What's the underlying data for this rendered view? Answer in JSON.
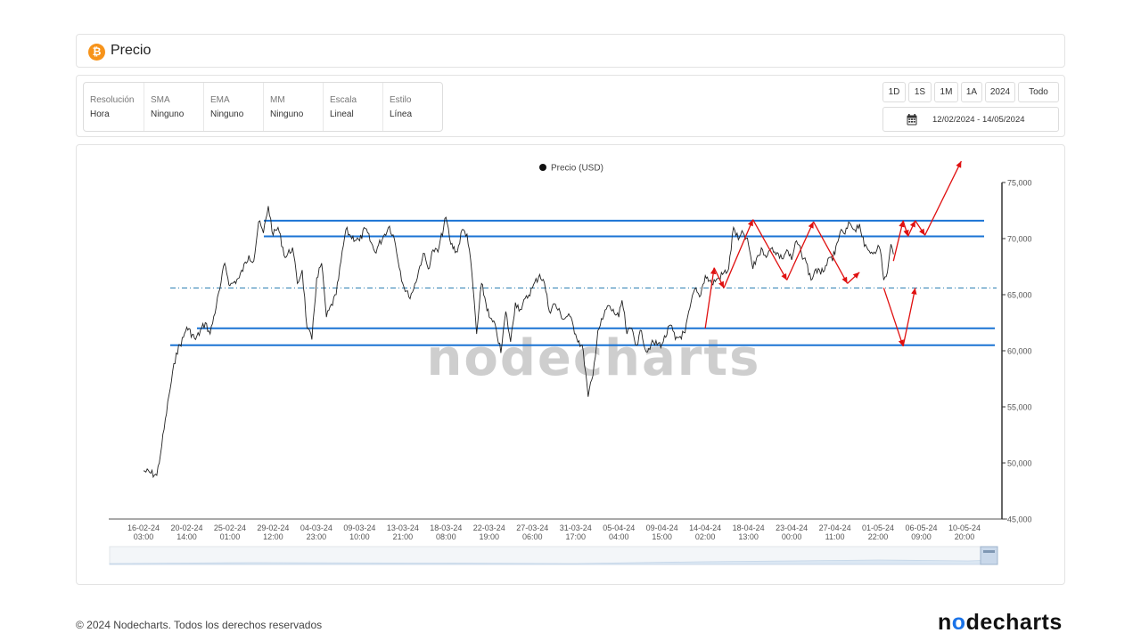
{
  "header": {
    "title": "Precio",
    "logo_icon": "bitcoin-icon",
    "logo_glyph": "₿"
  },
  "settings": [
    {
      "label": "Resolución",
      "value": "Hora"
    },
    {
      "label": "SMA",
      "value": "Ninguno"
    },
    {
      "label": "EMA",
      "value": "Ninguno"
    },
    {
      "label": "MM",
      "value": "Ninguno"
    },
    {
      "label": "Escala",
      "value": "Lineal"
    },
    {
      "label": "Estilo",
      "value": "Línea"
    }
  ],
  "ranges": [
    "1D",
    "1S",
    "1M",
    "1A",
    "2024",
    "Todo"
  ],
  "date_range": {
    "icon": "calendar-icon",
    "text": "12/02/2024 - 14/05/2024"
  },
  "watermark": "nodecharts",
  "footer": {
    "copyright": "© 2024 Nodecharts. Todos los derechos reservados",
    "logo": "nodecharts"
  },
  "chart_data": {
    "type": "line",
    "legend": [
      "Precio (USD)"
    ],
    "legend_placement": "top-center",
    "ylim": [
      45000,
      75000
    ],
    "y_ticks": [
      "45,000",
      "50,000",
      "55,000",
      "60,000",
      "65,000",
      "70,000",
      "75,000"
    ],
    "y_tick_values": [
      45000,
      50000,
      55000,
      60000,
      65000,
      70000,
      75000
    ],
    "x_ticks": [
      [
        "16-02-24",
        "03:00"
      ],
      [
        "20-02-24",
        "14:00"
      ],
      [
        "25-02-24",
        "01:00"
      ],
      [
        "29-02-24",
        "12:00"
      ],
      [
        "04-03-24",
        "23:00"
      ],
      [
        "09-03-24",
        "10:00"
      ],
      [
        "13-03-24",
        "21:00"
      ],
      [
        "18-03-24",
        "08:00"
      ],
      [
        "22-03-24",
        "19:00"
      ],
      [
        "27-03-24",
        "06:00"
      ],
      [
        "31-03-24",
        "17:00"
      ],
      [
        "05-04-24",
        "04:00"
      ],
      [
        "09-04-24",
        "15:00"
      ],
      [
        "14-04-24",
        "02:00"
      ],
      [
        "18-04-24",
        "13:00"
      ],
      [
        "23-04-24",
        "00:00"
      ],
      [
        "27-04-24",
        "11:00"
      ],
      [
        "01-05-24",
        "22:00"
      ],
      [
        "06-05-24",
        "09:00"
      ],
      [
        "10-05-24",
        "20:00"
      ]
    ],
    "grid": false,
    "series": [
      {
        "name": "Precio (USD)",
        "color": "#222222",
        "points": [
          [
            "16-02-24 03:00",
            49300
          ],
          [
            "17-02-24 12:00",
            48900
          ],
          [
            "18-02-24 00:00",
            51500
          ],
          [
            "18-02-24 18:00",
            56000
          ],
          [
            "19-02-24 12:00",
            59800
          ],
          [
            "20-02-24 06:00",
            61200
          ],
          [
            "20-02-24 14:00",
            62100
          ],
          [
            "21-02-24 12:00",
            61000
          ],
          [
            "22-02-24 12:00",
            62500
          ],
          [
            "23-02-24 00:00",
            61500
          ],
          [
            "24-02-24 00:00",
            65500
          ],
          [
            "24-02-24 12:00",
            67800
          ],
          [
            "25-02-24 01:00",
            65800
          ],
          [
            "26-02-24 00:00",
            66500
          ],
          [
            "27-02-24 00:00",
            68500
          ],
          [
            "27-02-24 12:00",
            68000
          ],
          [
            "28-02-24 00:00",
            71500
          ],
          [
            "28-02-24 12:00",
            70500
          ],
          [
            "29-02-24 00:00",
            72900
          ],
          [
            "29-02-24 12:00",
            70300
          ],
          [
            "01-03-24 00:00",
            71000
          ],
          [
            "01-03-24 18:00",
            68300
          ],
          [
            "02-03-24 12:00",
            69200
          ],
          [
            "03-03-24 00:00",
            66000
          ],
          [
            "03-03-24 12:00",
            67200
          ],
          [
            "04-03-24 00:00",
            62000
          ],
          [
            "04-03-24 12:00",
            61000
          ],
          [
            "05-03-24 00:00",
            66500
          ],
          [
            "05-03-24 12:00",
            67800
          ],
          [
            "06-03-24 00:00",
            63000
          ],
          [
            "07-03-24 00:00",
            65000
          ],
          [
            "08-03-24 00:00",
            70800
          ],
          [
            "08-03-24 12:00",
            70200
          ],
          [
            "09-03-24 10:00",
            69800
          ],
          [
            "10-03-24 00:00",
            70900
          ],
          [
            "11-03-24 00:00",
            68800
          ],
          [
            "12-03-24 00:00",
            70400
          ],
          [
            "12-03-24 12:00",
            71100
          ],
          [
            "13-03-24 00:00",
            70000
          ],
          [
            "13-03-24 21:00",
            66000
          ],
          [
            "14-03-24 12:00",
            64800
          ],
          [
            "15-03-24 00:00",
            65500
          ],
          [
            "16-03-24 00:00",
            68700
          ],
          [
            "16-03-24 12:00",
            67300
          ],
          [
            "17-03-24 00:00",
            69000
          ],
          [
            "17-03-24 12:00",
            68800
          ],
          [
            "18-03-24 08:00",
            71900
          ],
          [
            "18-03-24 20:00",
            69500
          ],
          [
            "19-03-24 12:00",
            68800
          ],
          [
            "20-03-24 00:00",
            70800
          ],
          [
            "20-03-24 12:00",
            70400
          ],
          [
            "21-03-24 00:00",
            67000
          ],
          [
            "21-03-24 12:00",
            61500
          ],
          [
            "22-03-24 00:00",
            66000
          ],
          [
            "22-03-24 19:00",
            63000
          ],
          [
            "23-03-24 12:00",
            62000
          ],
          [
            "24-03-24 00:00",
            59800
          ],
          [
            "24-03-24 12:00",
            63500
          ],
          [
            "25-03-24 00:00",
            60800
          ],
          [
            "25-03-24 12:00",
            64300
          ],
          [
            "26-03-24 00:00",
            63700
          ],
          [
            "27-03-24 06:00",
            65600
          ],
          [
            "28-03-24 00:00",
            66800
          ],
          [
            "28-03-24 12:00",
            66000
          ],
          [
            "29-03-24 00:00",
            63500
          ],
          [
            "29-03-24 12:00",
            64200
          ],
          [
            "30-03-24 12:00",
            62800
          ],
          [
            "31-03-24 00:00",
            63300
          ],
          [
            "31-03-24 17:00",
            61500
          ],
          [
            "01-04-24 12:00",
            60000
          ],
          [
            "02-04-24 00:00",
            55900
          ],
          [
            "02-04-24 12:00",
            57800
          ],
          [
            "03-04-24 00:00",
            61800
          ],
          [
            "03-04-24 12:00",
            62800
          ],
          [
            "04-04-24 00:00",
            64000
          ],
          [
            "05-04-24 04:00",
            63000
          ],
          [
            "05-04-24 12:00",
            64500
          ],
          [
            "06-04-24 00:00",
            61500
          ],
          [
            "06-04-24 12:00",
            62000
          ],
          [
            "07-04-24 00:00",
            60500
          ],
          [
            "07-04-24 12:00",
            61800
          ],
          [
            "08-04-24 00:00",
            59900
          ],
          [
            "08-04-24 12:00",
            60600
          ],
          [
            "09-04-24 15:00",
            60600
          ],
          [
            "10-04-24 12:00",
            62300
          ],
          [
            "11-04-24 00:00",
            61000
          ],
          [
            "12-04-24 00:00",
            61600
          ],
          [
            "12-04-24 12:00",
            63800
          ],
          [
            "13-04-24 00:00",
            65500
          ],
          [
            "13-04-24 12:00",
            64800
          ],
          [
            "14-04-24 02:00",
            66700
          ],
          [
            "14-04-24 18:00",
            66000
          ],
          [
            "15-04-24 12:00",
            66500
          ],
          [
            "16-04-24 12:00",
            67300
          ],
          [
            "17-04-24 00:00",
            71000
          ],
          [
            "17-04-24 12:00",
            69900
          ],
          [
            "18-04-24 00:00",
            70500
          ],
          [
            "18-04-24 13:00",
            69500
          ],
          [
            "19-04-24 00:00",
            67300
          ],
          [
            "19-04-24 12:00",
            68500
          ],
          [
            "20-04-24 00:00",
            69000
          ],
          [
            "20-04-24 12:00",
            68500
          ],
          [
            "21-04-24 00:00",
            69200
          ],
          [
            "22-04-24 00:00",
            68200
          ],
          [
            "22-04-24 12:00",
            69000
          ],
          [
            "23-04-24 00:00",
            68100
          ],
          [
            "23-04-24 12:00",
            69800
          ],
          [
            "24-04-24 00:00",
            68700
          ],
          [
            "24-04-24 12:00",
            67900
          ],
          [
            "25-04-24 00:00",
            66300
          ],
          [
            "25-04-24 12:00",
            67300
          ],
          [
            "26-04-24 00:00",
            66800
          ],
          [
            "26-04-24 12:00",
            67600
          ],
          [
            "27-04-24 11:00",
            68600
          ],
          [
            "28-04-24 00:00",
            70600
          ],
          [
            "28-04-24 12:00",
            70400
          ],
          [
            "29-04-24 00:00",
            71400
          ],
          [
            "29-04-24 12:00",
            70800
          ],
          [
            "30-04-24 00:00",
            71300
          ],
          [
            "30-04-24 12:00",
            69300
          ],
          [
            "01-05-24 00:00",
            68900
          ],
          [
            "01-05-24 12:00",
            68800
          ],
          [
            "01-05-24 22:00",
            69400
          ],
          [
            "02-05-24 06:00",
            68400
          ],
          [
            "02-05-24 12:00",
            66300
          ],
          [
            "02-05-24 18:00",
            66600
          ],
          [
            "03-05-24 00:00",
            67800
          ],
          [
            "03-05-24 06:00",
            69500
          ],
          [
            "03-05-24 12:00",
            68600
          ]
        ]
      }
    ],
    "support_resistance_lines": [
      72800,
      71600,
      70200,
      62000,
      60500
    ],
    "midline_value": 65600,
    "projection_path": [
      [
        "03-05-24 12:00",
        68000
      ],
      [
        "04-05-24 12:00",
        71600
      ],
      [
        "05-05-24 00:00",
        70200
      ],
      [
        "05-05-24 18:00",
        71600
      ],
      [
        "06-05-24 18:00",
        70300
      ],
      [
        "10-05-24 12:00",
        76900
      ]
    ],
    "projection_alt_path": [
      [
        "02-05-24 12:00",
        65600
      ],
      [
        "04-05-24 12:00",
        60400
      ],
      [
        "05-05-24 18:00",
        65600
      ]
    ],
    "history_path": [
      [
        "14-04-24 02:00",
        62000
      ],
      [
        "15-04-24 00:00",
        67400
      ],
      [
        "16-04-24 00:00",
        65600
      ],
      [
        "19-04-24 00:00",
        71700
      ],
      [
        "22-04-24 12:00",
        66300
      ],
      [
        "25-04-24 06:00",
        71500
      ],
      [
        "28-04-24 18:00",
        66000
      ],
      [
        "30-04-24 00:00",
        67000
      ]
    ]
  }
}
